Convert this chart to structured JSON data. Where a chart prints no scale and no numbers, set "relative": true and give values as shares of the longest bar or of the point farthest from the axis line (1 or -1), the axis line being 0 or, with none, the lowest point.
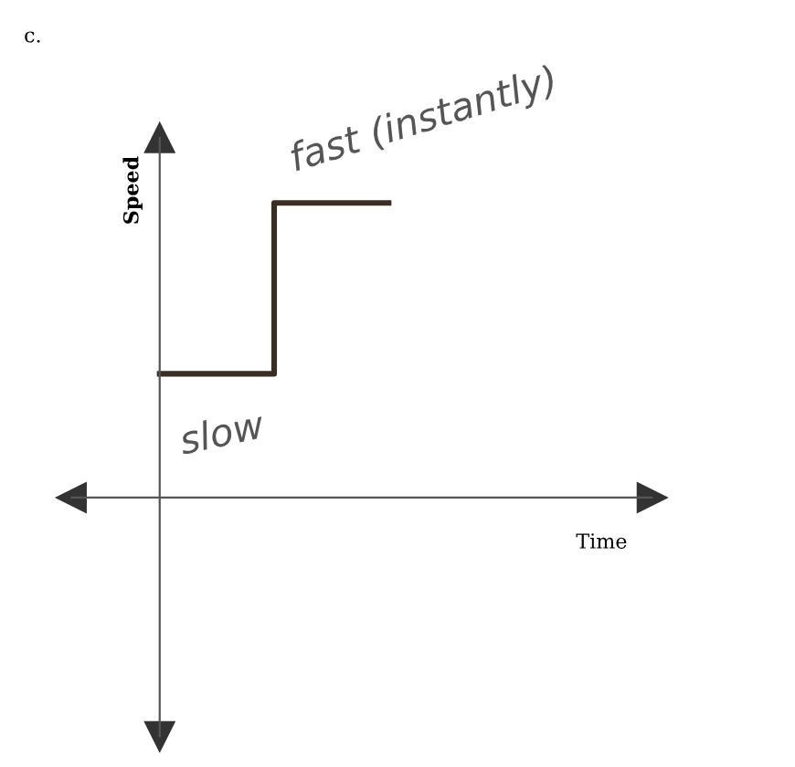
{
  "chart_data": {
    "type": "step",
    "title": "c.",
    "ylabel": "Speed",
    "relative": true,
    "categories": [
      null,
      null,
      null
    ],
    "series": [
      {
        "color": "#3a2e24",
        "values": [
          0.42,
          1,
          1
        ]
      }
    ],
    "annotations": [
      "slow",
      "fast (instantly)",
      "Time"
    ]
  }
}
